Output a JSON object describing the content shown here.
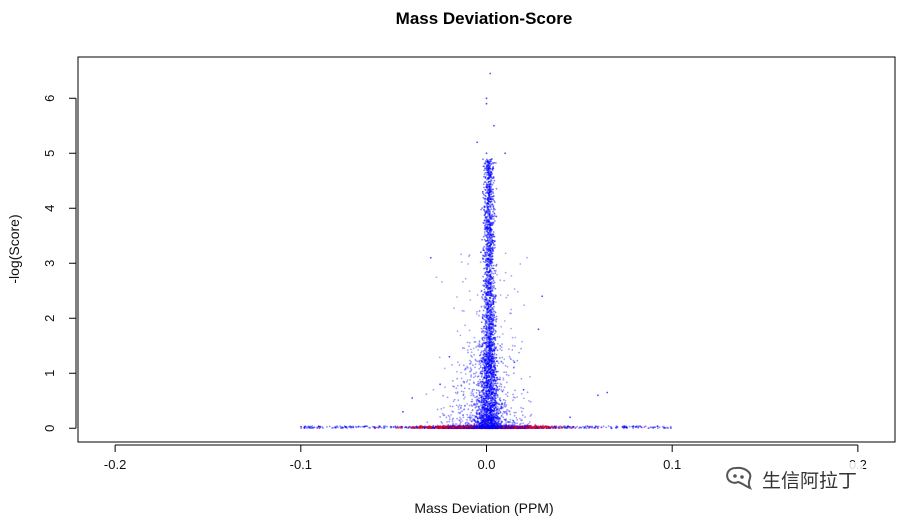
{
  "chart_data": {
    "type": "scatter",
    "title": "Mass Deviation-Score",
    "xlabel": "Mass Deviation (PPM)",
    "ylabel": "-log(Score)",
    "xlim": [
      -0.22,
      0.22
    ],
    "ylim": [
      -0.25,
      6.75
    ],
    "x_ticks": [
      -0.2,
      -0.1,
      0.0,
      0.1,
      0.2
    ],
    "x_tick_labels": [
      "-0.2",
      "-0.1",
      "0.0",
      "0.1",
      "0.2"
    ],
    "y_ticks": [
      0,
      1,
      2,
      3,
      4,
      5,
      6
    ],
    "y_tick_labels": [
      "0",
      "1",
      "2",
      "3",
      "4",
      "5",
      "6"
    ],
    "grid": false,
    "series": [
      {
        "color": "#0000ff",
        "points": [
          [
            0.0,
            6.0
          ],
          [
            0.002,
            6.45
          ],
          [
            0.0,
            5.9
          ],
          [
            0.004,
            5.5
          ],
          [
            0.0,
            5.0
          ],
          [
            0.01,
            5.0
          ],
          [
            -0.005,
            5.2
          ],
          [
            0.002,
            4.6
          ],
          [
            -0.002,
            4.3
          ],
          [
            0.004,
            4.0
          ],
          [
            0.002,
            3.7
          ],
          [
            0.0,
            3.5
          ],
          [
            -0.003,
            3.2
          ],
          [
            0.002,
            3.0
          ],
          [
            0.0,
            2.6
          ],
          [
            0.004,
            2.3
          ],
          [
            -0.002,
            2.0
          ],
          [
            0.0,
            1.7
          ],
          [
            0.003,
            1.4
          ],
          [
            -0.002,
            1.1
          ],
          [
            0.002,
            0.8
          ],
          [
            0.0,
            0.5
          ],
          [
            -0.03,
            3.1
          ],
          [
            0.03,
            2.4
          ],
          [
            0.028,
            1.8
          ],
          [
            -0.02,
            1.3
          ],
          [
            0.015,
            1.2
          ],
          [
            -0.025,
            0.8
          ],
          [
            0.02,
            0.7
          ],
          [
            0.06,
            0.6
          ],
          [
            -0.045,
            0.3
          ],
          [
            0.045,
            0.2
          ],
          [
            0.065,
            0.65
          ],
          [
            -0.04,
            0.55
          ]
        ]
      },
      {
        "color": "#ff0000",
        "points": [
          [
            -0.09,
            0.0
          ],
          [
            -0.06,
            0.0
          ],
          [
            -0.03,
            0.02
          ],
          [
            0.0,
            0.1
          ],
          [
            0.03,
            0.03
          ],
          [
            0.06,
            0.0
          ],
          [
            0.085,
            0.02
          ]
        ]
      }
    ],
    "watermark": "生信阿拉丁"
  }
}
